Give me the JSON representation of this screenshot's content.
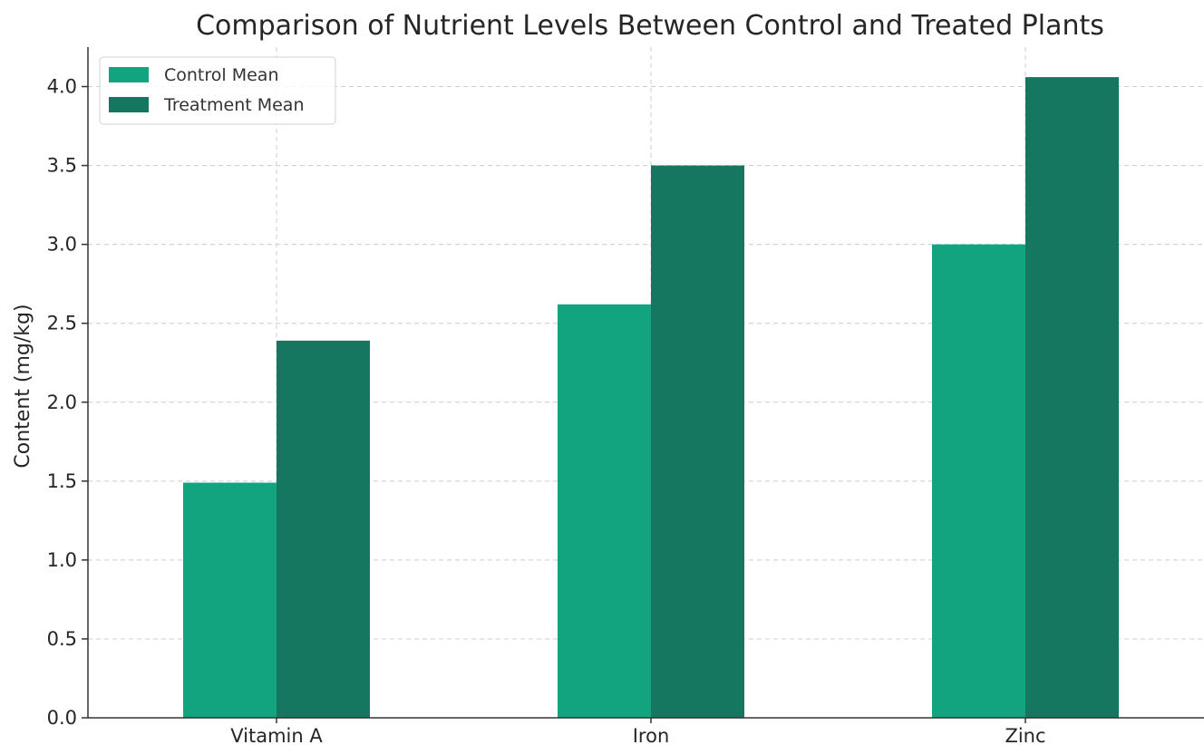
{
  "chart_data": {
    "type": "bar",
    "title": "Comparison of Nutrient Levels Between Control and Treated Plants",
    "xlabel": "",
    "ylabel": "Content (mg/kg)",
    "categories": [
      "Vitamin A",
      "Iron",
      "Zinc"
    ],
    "series": [
      {
        "name": "Control Mean",
        "values": [
          1.49,
          2.62,
          3.0
        ],
        "color": "#12a37f"
      },
      {
        "name": "Treatment Mean",
        "values": [
          2.39,
          3.5,
          4.06
        ],
        "color": "#157760"
      }
    ],
    "ylim": [
      0,
      4.25
    ],
    "yticks": [
      "0.0",
      "0.5",
      "1.0",
      "1.5",
      "2.0",
      "2.5",
      "3.0",
      "3.5",
      "4.0"
    ],
    "grid": true,
    "legend_position": "top-left"
  }
}
